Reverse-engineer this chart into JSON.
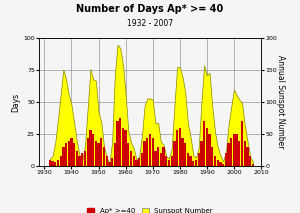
{
  "title": "Number of Days Ap* >= 40",
  "subtitle": "1932 - 2007",
  "ylabel_left": "Days",
  "ylabel_right": "Annual Sunspot Number",
  "xlim": [
    1928,
    2010
  ],
  "ylim_left": [
    0,
    100
  ],
  "ylim_right": [
    0,
    200
  ],
  "yticks_left": [
    0,
    25,
    50,
    75,
    100
  ],
  "yticks_right": [
    0,
    50,
    100,
    150,
    200
  ],
  "xticks": [
    1930,
    1940,
    1950,
    1960,
    1970,
    1980,
    1990,
    2000,
    2010
  ],
  "bar_color": "#cc0000",
  "area_color": "#ffff00",
  "area_edge_color": "#888800",
  "legend_ap": "Ap* >=40",
  "legend_ss": "Sunspot Number",
  "years": [
    1932,
    1933,
    1934,
    1935,
    1936,
    1937,
    1938,
    1939,
    1940,
    1941,
    1942,
    1943,
    1944,
    1945,
    1946,
    1947,
    1948,
    1949,
    1950,
    1951,
    1952,
    1953,
    1954,
    1955,
    1956,
    1957,
    1958,
    1959,
    1960,
    1961,
    1962,
    1963,
    1964,
    1965,
    1966,
    1967,
    1968,
    1969,
    1970,
    1971,
    1972,
    1973,
    1974,
    1975,
    1976,
    1977,
    1978,
    1979,
    1980,
    1981,
    1982,
    1983,
    1984,
    1985,
    1986,
    1987,
    1988,
    1989,
    1990,
    1991,
    1992,
    1993,
    1994,
    1995,
    1996,
    1997,
    1998,
    1999,
    2000,
    2001,
    2002,
    2003,
    2004,
    2005,
    2006,
    2007
  ],
  "ap_days": [
    5,
    4,
    3,
    5,
    8,
    15,
    18,
    20,
    22,
    18,
    12,
    8,
    10,
    12,
    22,
    28,
    25,
    20,
    18,
    22,
    15,
    8,
    3,
    6,
    18,
    35,
    38,
    30,
    28,
    18,
    12,
    8,
    5,
    6,
    10,
    20,
    22,
    25,
    22,
    12,
    15,
    10,
    15,
    8,
    5,
    8,
    20,
    28,
    30,
    22,
    18,
    10,
    8,
    4,
    5,
    10,
    20,
    35,
    30,
    25,
    15,
    8,
    5,
    3,
    2,
    10,
    18,
    22,
    25,
    25,
    20,
    35,
    20,
    15,
    8,
    2
  ],
  "sunspot": [
    11,
    16,
    37,
    73,
    112,
    151,
    136,
    111,
    96,
    67,
    38,
    16,
    10,
    33,
    92,
    152,
    136,
    134,
    84,
    69,
    31,
    14,
    4,
    38,
    142,
    190,
    185,
    159,
    112,
    54,
    37,
    28,
    10,
    15,
    47,
    94,
    106,
    106,
    104,
    67,
    68,
    38,
    34,
    15,
    12,
    27,
    93,
    155,
    155,
    140,
    116,
    67,
    45,
    17,
    13,
    29,
    100,
    158,
    142,
    146,
    94,
    54,
    30,
    17,
    8,
    21,
    64,
    93,
    120,
    111,
    104,
    99,
    64,
    40,
    15,
    7
  ],
  "bg_color": "#f0f0f0",
  "title_fontsize": 7,
  "subtitle_fontsize": 5.5,
  "tick_fontsize": 4.5,
  "axis_label_fontsize": 5.5,
  "legend_fontsize": 5
}
